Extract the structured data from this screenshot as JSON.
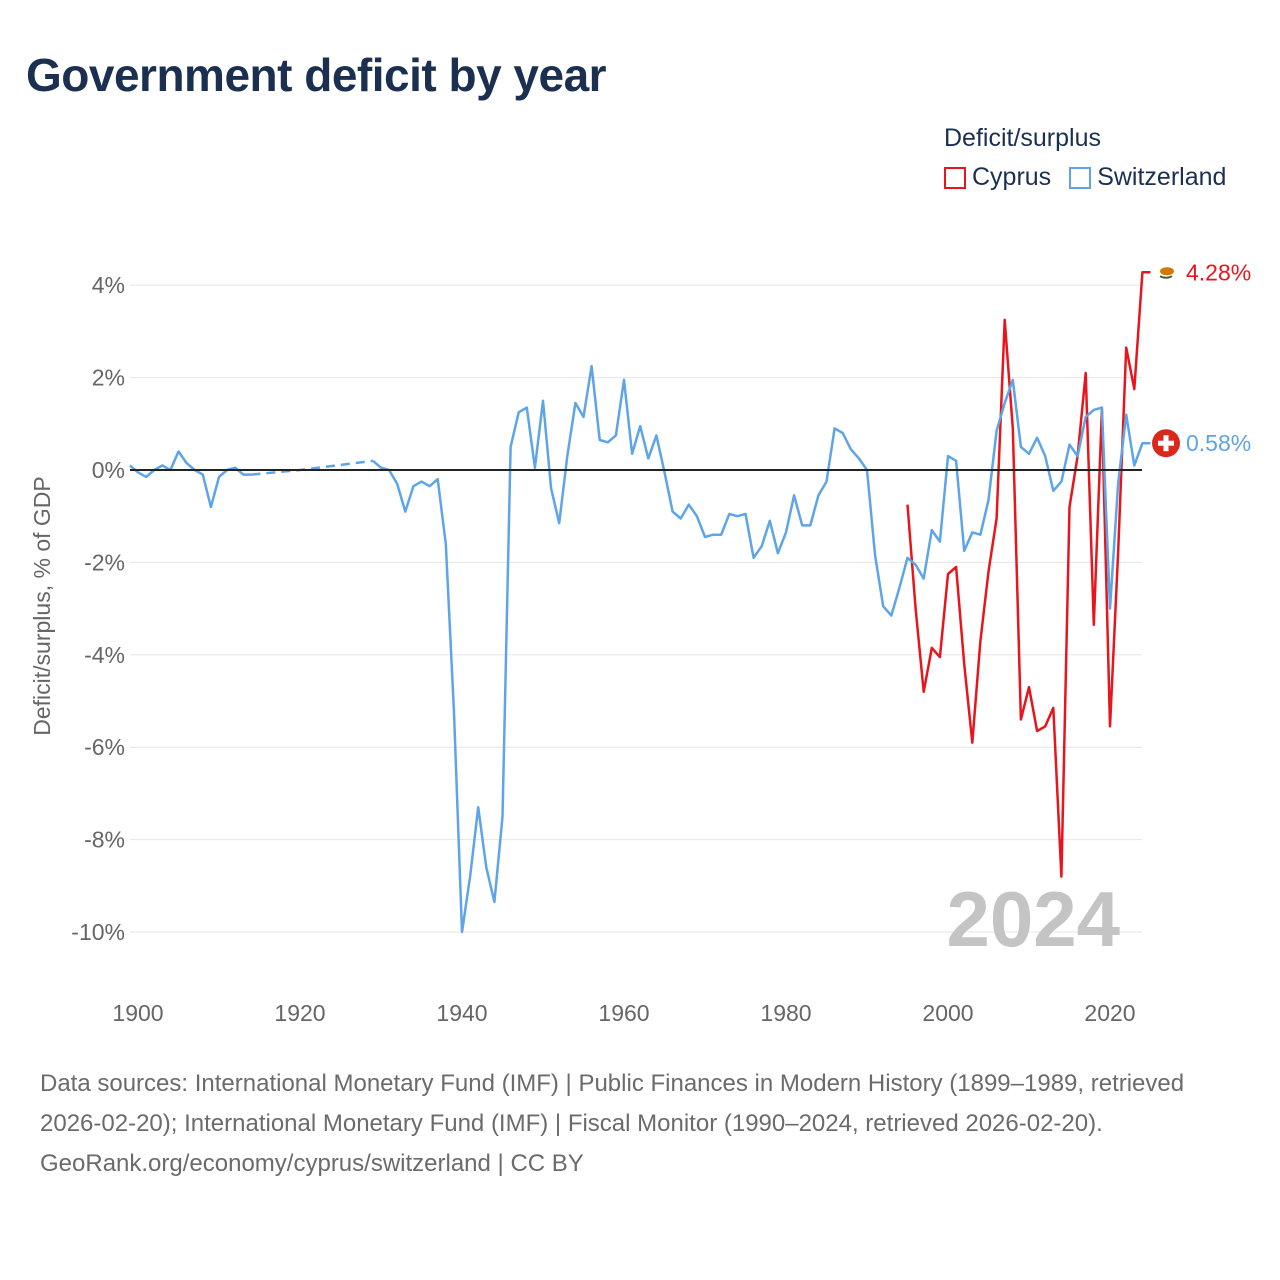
{
  "title": "Government deficit by year",
  "legend": {
    "title": "Deficit/surplus"
  },
  "chart_data": {
    "type": "line",
    "title": "Government deficit by year",
    "ylabel": "Deficit/surplus, % of GDP",
    "xlabel": "",
    "xlim": [
      1899,
      2025
    ],
    "ylim": [
      -11,
      4.4
    ],
    "x_ticks": [
      1900,
      1920,
      1940,
      1960,
      1980,
      2000,
      2020
    ],
    "x_tick_labels": [
      "1900",
      "1920",
      "1940",
      "1960",
      "1980",
      "2000",
      "2020"
    ],
    "y_ticks": [
      4,
      2,
      0,
      -2,
      -4,
      -6,
      -8,
      -10
    ],
    "y_tick_labels": [
      "4%",
      "2%",
      "0%",
      "-2%",
      "-4%",
      "-6%",
      "-8%",
      "-10%"
    ],
    "year_watermark": "2024",
    "series": [
      {
        "name": "Cyprus",
        "color": "#e8161c",
        "end_label": "4.28%",
        "end_icon": "cyprus-flag-icon",
        "points": [
          [
            1995,
            -0.75
          ],
          [
            1996,
            -3.0
          ],
          [
            1997,
            -4.8
          ],
          [
            1998,
            -3.85
          ],
          [
            1999,
            -4.05
          ],
          [
            2000,
            -2.25
          ],
          [
            2001,
            -2.1
          ],
          [
            2002,
            -4.2
          ],
          [
            2003,
            -5.9
          ],
          [
            2004,
            -3.7
          ],
          [
            2005,
            -2.2
          ],
          [
            2006,
            -1.05
          ],
          [
            2007,
            3.25
          ],
          [
            2008,
            0.9
          ],
          [
            2009,
            -5.4
          ],
          [
            2010,
            -4.7
          ],
          [
            2011,
            -5.65
          ],
          [
            2012,
            -5.55
          ],
          [
            2013,
            -5.15
          ],
          [
            2014,
            -8.8
          ],
          [
            2015,
            -0.8
          ],
          [
            2016,
            0.3
          ],
          [
            2017,
            2.1
          ],
          [
            2018,
            -3.35
          ],
          [
            2019,
            1.3
          ],
          [
            2020,
            -5.55
          ],
          [
            2021,
            -1.8
          ],
          [
            2022,
            2.65
          ],
          [
            2023,
            1.75
          ],
          [
            2024,
            4.28
          ],
          [
            2025,
            4.28
          ]
        ]
      },
      {
        "name": "Switzerland",
        "color": "#5da5e8",
        "end_label": "0.58%",
        "end_icon": "switzerland-flag-icon",
        "points": [
          [
            1899,
            0.1
          ],
          [
            1900,
            -0.05
          ],
          [
            1901,
            -0.15
          ],
          [
            1902,
            0.0
          ],
          [
            1903,
            0.1
          ],
          [
            1904,
            0.0
          ],
          [
            1905,
            0.4
          ],
          [
            1906,
            0.15
          ],
          [
            1907,
            0.0
          ],
          [
            1908,
            -0.1
          ],
          [
            1909,
            -0.8
          ],
          [
            1910,
            -0.15
          ],
          [
            1911,
            0.0
          ],
          [
            1912,
            0.05
          ],
          [
            1913,
            -0.1
          ],
          [
            1914,
            -0.1
          ],
          [
            1914,
            -0.1
          ],
          [
            1920,
            0.0
          ],
          [
            1929,
            0.2
          ],
          [
            1929,
            0.2
          ],
          [
            1930,
            0.05
          ],
          [
            1931,
            0.0
          ],
          [
            1932,
            -0.3
          ],
          [
            1933,
            -0.9
          ],
          [
            1934,
            -0.35
          ],
          [
            1935,
            -0.25
          ],
          [
            1936,
            -0.35
          ],
          [
            1937,
            -0.2
          ],
          [
            1938,
            -1.6
          ],
          [
            1939,
            -5.2
          ],
          [
            1940,
            -10.0
          ],
          [
            1941,
            -8.8
          ],
          [
            1942,
            -7.3
          ],
          [
            1943,
            -8.6
          ],
          [
            1944,
            -9.35
          ],
          [
            1945,
            -7.5
          ],
          [
            1946,
            0.5
          ],
          [
            1947,
            1.25
          ],
          [
            1948,
            1.35
          ],
          [
            1949,
            0.05
          ],
          [
            1950,
            1.5
          ],
          [
            1951,
            -0.4
          ],
          [
            1952,
            -1.15
          ],
          [
            1953,
            0.3
          ],
          [
            1954,
            1.45
          ],
          [
            1955,
            1.15
          ],
          [
            1956,
            2.25
          ],
          [
            1957,
            0.65
          ],
          [
            1958,
            0.6
          ],
          [
            1959,
            0.75
          ],
          [
            1960,
            1.95
          ],
          [
            1961,
            0.35
          ],
          [
            1962,
            0.95
          ],
          [
            1963,
            0.25
          ],
          [
            1964,
            0.75
          ],
          [
            1965,
            -0.05
          ],
          [
            1966,
            -0.9
          ],
          [
            1967,
            -1.05
          ],
          [
            1968,
            -0.75
          ],
          [
            1969,
            -1.0
          ],
          [
            1970,
            -1.45
          ],
          [
            1971,
            -1.4
          ],
          [
            1972,
            -1.4
          ],
          [
            1973,
            -0.95
          ],
          [
            1974,
            -1.0
          ],
          [
            1975,
            -0.95
          ],
          [
            1976,
            -1.9
          ],
          [
            1977,
            -1.65
          ],
          [
            1978,
            -1.1
          ],
          [
            1979,
            -1.8
          ],
          [
            1980,
            -1.35
          ],
          [
            1981,
            -0.55
          ],
          [
            1982,
            -1.2
          ],
          [
            1983,
            -1.2
          ],
          [
            1984,
            -0.55
          ],
          [
            1985,
            -0.25
          ],
          [
            1986,
            0.9
          ],
          [
            1987,
            0.8
          ],
          [
            1988,
            0.45
          ],
          [
            1989,
            0.25
          ],
          [
            1990,
            0.0
          ],
          [
            1991,
            -1.85
          ],
          [
            1992,
            -2.95
          ],
          [
            1993,
            -3.15
          ],
          [
            1994,
            -2.55
          ],
          [
            1995,
            -1.9
          ],
          [
            1996,
            -2.05
          ],
          [
            1997,
            -2.35
          ],
          [
            1998,
            -1.3
          ],
          [
            1999,
            -1.55
          ],
          [
            2000,
            0.3
          ],
          [
            2001,
            0.2
          ],
          [
            2002,
            -1.75
          ],
          [
            2003,
            -1.35
          ],
          [
            2004,
            -1.4
          ],
          [
            2005,
            -0.65
          ],
          [
            2006,
            0.85
          ],
          [
            2007,
            1.45
          ],
          [
            2008,
            1.95
          ],
          [
            2009,
            0.5
          ],
          [
            2010,
            0.35
          ],
          [
            2011,
            0.7
          ],
          [
            2012,
            0.3
          ],
          [
            2013,
            -0.45
          ],
          [
            2014,
            -0.25
          ],
          [
            2015,
            0.55
          ],
          [
            2016,
            0.3
          ],
          [
            2017,
            1.15
          ],
          [
            2018,
            1.3
          ],
          [
            2019,
            1.35
          ],
          [
            2020,
            -3.0
          ],
          [
            2021,
            -0.3
          ],
          [
            2022,
            1.2
          ],
          [
            2023,
            0.1
          ],
          [
            2024,
            0.58
          ],
          [
            2025,
            0.58
          ]
        ],
        "dashed_range": [
          1914,
          1929
        ]
      }
    ]
  },
  "footer": {
    "sources": "Data sources: International Monetary Fund (IMF) | Public Finances in Modern History (1899–1989, retrieved 2026-02-20); International Monetary Fund (IMF) | Fiscal Monitor (1990–2024, retrieved 2026-02-20).",
    "attribution": "GeoRank.org/economy/cyprus/switzerland | CC BY"
  }
}
